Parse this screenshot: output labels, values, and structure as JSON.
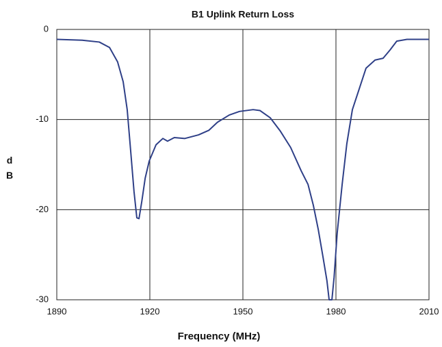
{
  "chart_data": {
    "type": "line",
    "title": "B1 Uplink Return Loss",
    "xlabel": "Frequency (MHz)",
    "ylabel": "dB",
    "x": [
      1890,
      1898.2,
      1903.7,
      1907,
      1909.6,
      1911.4,
      1912.7,
      1913.8,
      1914.9,
      1915.8,
      1916.5,
      1917.4,
      1918.5,
      1919.8,
      1922,
      1924.2,
      1925.7,
      1927.9,
      1931.3,
      1935.7,
      1939,
      1941.8,
      1945.6,
      1948.9,
      1953.3,
      1955.5,
      1958.8,
      1962.1,
      1965.4,
      1968.8,
      1971,
      1972.7,
      1974.3,
      1975.8,
      1977.1,
      1977.8,
      1978.7,
      1979.4,
      1980.4,
      1982,
      1983.5,
      1985.3,
      1987.5,
      1989.7,
      1992.6,
      1995.2,
      1997.4,
      1999.6,
      2002.9,
      2007.3,
      2010
    ],
    "series": [
      {
        "name": "Return Loss",
        "color": "#2e3f87",
        "values": [
          -1.1,
          -1.2,
          -1.4,
          -2.0,
          -3.6,
          -5.8,
          -8.9,
          -13.4,
          -18.0,
          -20.9,
          -21.0,
          -19.1,
          -16.5,
          -14.6,
          -12.8,
          -12.1,
          -12.4,
          -12.0,
          -12.1,
          -11.7,
          -11.2,
          -10.3,
          -9.5,
          -9.1,
          -8.9,
          -9.0,
          -9.8,
          -11.3,
          -13.1,
          -15.7,
          -17.2,
          -19.5,
          -22.2,
          -25.2,
          -27.9,
          -30,
          -30,
          -27.5,
          -22.6,
          -17.2,
          -12.7,
          -8.9,
          -6.6,
          -4.3,
          -3.4,
          -3.2,
          -2.3,
          -1.3,
          -1.1,
          -1.1,
          -1.1
        ]
      }
    ],
    "xlim": [
      1890,
      2010
    ],
    "xticks": [
      1890,
      1920,
      1950,
      1980,
      2010
    ],
    "ylim": [
      -30,
      0
    ],
    "yticks": [
      0,
      -10,
      -20,
      -30
    ],
    "grid": true
  }
}
